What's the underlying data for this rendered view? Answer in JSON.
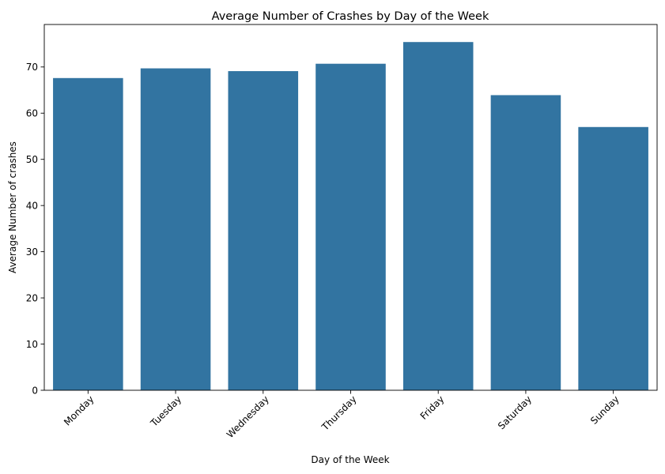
{
  "chart_data": {
    "type": "bar",
    "title": "Average Number of Crashes by Day of the Week",
    "xlabel": "Day of the Week",
    "ylabel": "Average Number of crashes",
    "categories": [
      "Monday",
      "Tuesday",
      "Wednesday",
      "Thursday",
      "Friday",
      "Saturday",
      "Sunday"
    ],
    "values": [
      67.6,
      69.7,
      69.1,
      70.7,
      75.4,
      63.9,
      57.0
    ],
    "ylim": [
      0,
      79.2
    ],
    "yticks": [
      0,
      10,
      20,
      30,
      40,
      50,
      60,
      70
    ],
    "bar_color": "#3274a1",
    "grid": false,
    "legend": "none"
  }
}
